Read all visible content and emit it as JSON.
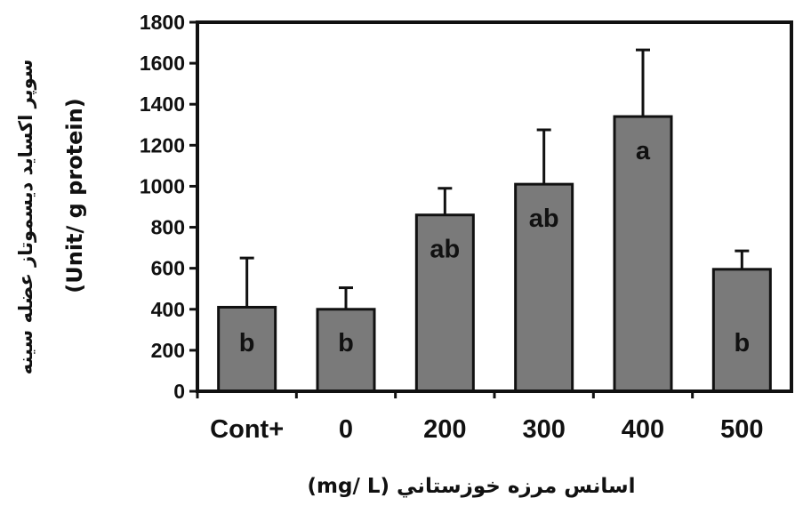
{
  "chart_data": {
    "type": "bar",
    "categories": [
      "Cont+",
      "0",
      "200",
      "300",
      "400",
      "500"
    ],
    "values": [
      410,
      400,
      860,
      1010,
      1340,
      595
    ],
    "error_upper": [
      650,
      505,
      990,
      1275,
      1665,
      685
    ],
    "bar_labels": [
      "b",
      "b",
      "ab",
      "ab",
      "a",
      "b"
    ],
    "ylim": [
      0,
      1800
    ],
    "yticks": [
      0,
      200,
      400,
      600,
      800,
      1000,
      1200,
      1400,
      1600,
      1800
    ],
    "ylabel_line1": "سوپر اکسايد ديسموتاز عضله سينه",
    "ylabel_line2": "(Unit/ g protein)",
    "xlabel": "اسانس مرزه خوزستاني (mg/ L)",
    "grid": false,
    "bar_color": "#7a7a7a"
  }
}
